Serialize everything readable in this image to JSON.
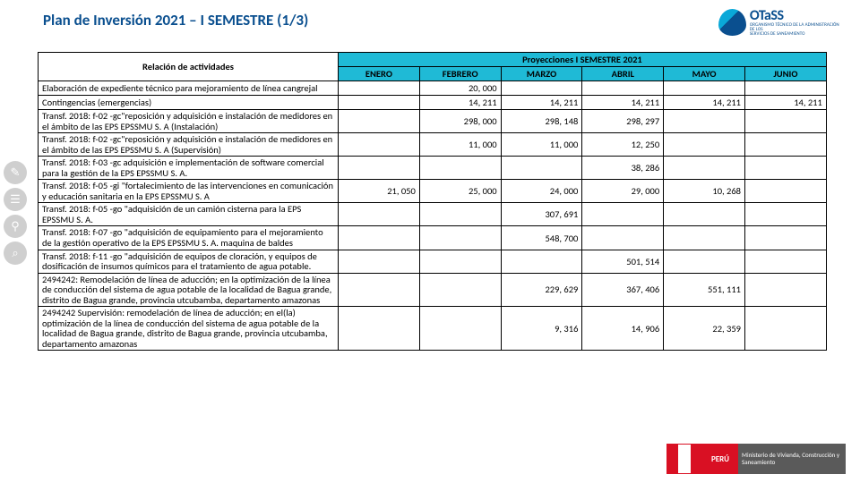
{
  "title": "Plan de Inversión 2021 – I SEMESTRE (1/3)",
  "brand": {
    "name": "OTaSS",
    "line1": "ORGANISMO TÉCNICO DE LA ADMINISTRACIÓN DE LOS",
    "line2": "SERVICIOS DE SANEAMIENTO"
  },
  "table": {
    "header_rel": "Relación de actividades",
    "header_proy": "Proyecciones I SEMESTRE 2021",
    "months": [
      "ENERO",
      "FEBRERO",
      "MARZO",
      "ABRIL",
      "MAYO",
      "JUNIO"
    ],
    "rows": [
      {
        "activity": "Elaboración de expediente técnico para mejoramiento de línea cangrejal",
        "vals": [
          "",
          "20, 000",
          "",
          "",
          "",
          ""
        ]
      },
      {
        "activity": "Contingencias (emergencias)",
        "vals": [
          "",
          "14, 211",
          "14, 211",
          "14, 211",
          "14, 211",
          "14, 211"
        ]
      },
      {
        "activity": "Transf. 2018: f-02 -gc\"reposición y adquisición e instalación de medidores en el ámbito de las EPS EPSSMU S. A  (Instalación)",
        "vals": [
          "",
          "298, 000",
          "298, 148",
          "298, 297",
          "",
          ""
        ]
      },
      {
        "activity": "Transf. 2018: f-02 -gc\"reposición y adquisición e instalación de medidores en el ámbito de las EPS EPSSMU S. A  (Supervisión)",
        "vals": [
          "",
          "11, 000",
          "11, 000",
          "12, 250",
          "",
          ""
        ]
      },
      {
        "activity": "Transf. 2018: f-03 -gc adquisición e implementación de software comercial para la gestión de la EPS EPSSMU S. A.",
        "vals": [
          "",
          "",
          "",
          "38, 286",
          "",
          ""
        ]
      },
      {
        "activity": "Transf. 2018: f-05 -gi \"fortalecimiento de las intervenciones en comunicación y educación sanitaria en la EPS EPSSMU S. A",
        "vals": [
          "21, 050",
          "25, 000",
          "24, 000",
          "29, 000",
          "10, 268",
          ""
        ]
      },
      {
        "activity": "Transf. 2018: f-05 -go \"adquisición de un camión cisterna para la EPS EPSSMU S. A.",
        "vals": [
          "",
          "",
          "307, 691",
          "",
          "",
          ""
        ]
      },
      {
        "activity": "Transf. 2018: f-07 -go \"adquisición de equipamiento para el mejoramiento de la gestión operativo de la EPS EPSSMU S. A.  maquina de baldes",
        "vals": [
          "",
          "",
          "548, 700",
          "",
          "",
          ""
        ]
      },
      {
        "activity": "Transf. 2018: f-11 -go \"adquisición de equipos de cloración, y equipos de dosificación de insumos químicos para el tratamiento de agua potable.",
        "vals": [
          "",
          "",
          "",
          "501, 514",
          "",
          ""
        ]
      },
      {
        "activity": "2494242: Remodelación de línea de aducción; en la optimización de la línea de conducción del sistema de agua potable de la localidad de Bagua grande, distrito de Bagua grande, provincia utcubamba, departamento amazonas",
        "vals": [
          "",
          "",
          "229, 629",
          "367, 406",
          "551, 111",
          ""
        ]
      },
      {
        "activity": "2494242 Supervisión: remodelación de línea de aducción; en el(la) optimización de la línea de conducción del sistema de agua potable de la localidad de Bagua grande, distrito de Bagua grande, provincia utcubamba, departamento amazonas",
        "vals": [
          "",
          "",
          "9, 316",
          "14, 906",
          "22, 359",
          ""
        ]
      }
    ]
  },
  "footer": {
    "peru": "PERÚ",
    "ministry": "Ministerio de Vivienda, Construcción y Saneamiento"
  }
}
